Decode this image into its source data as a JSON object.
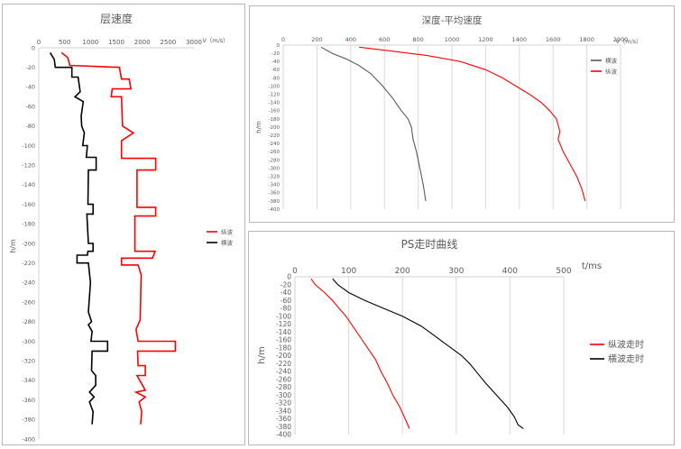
{
  "chart_data": [
    {
      "type": "line",
      "title": "层速度",
      "xlabel": "V（m/s）",
      "ylabel": "h/m",
      "xlim": [
        0,
        3000
      ],
      "ylim": [
        -400,
        0
      ],
      "xticks": [
        0,
        500,
        1000,
        1500,
        2000,
        2500,
        3000
      ],
      "yticks": [
        0,
        -20,
        -40,
        -60,
        -80,
        -100,
        -120,
        -140,
        -160,
        -180,
        -200,
        -220,
        -240,
        -260,
        -280,
        -300,
        -320,
        -340,
        -360,
        -380,
        -400
      ],
      "legend_position": "right",
      "grid": "none",
      "series": [
        {
          "name": "纵波",
          "color": "#ff0000",
          "step": true,
          "points": [
            [
              440,
              -5
            ],
            [
              560,
              -10
            ],
            [
              600,
              -18
            ],
            [
              1560,
              -20
            ],
            [
              1600,
              -32
            ],
            [
              1750,
              -32
            ],
            [
              1780,
              -42
            ],
            [
              1420,
              -42
            ],
            [
              1400,
              -50
            ],
            [
              1600,
              -50
            ],
            [
              1620,
              -80
            ],
            [
              1830,
              -87
            ],
            [
              1600,
              -95
            ],
            [
              1600,
              -113
            ],
            [
              2260,
              -113
            ],
            [
              2260,
              -125
            ],
            [
              1900,
              -125
            ],
            [
              1900,
              -163
            ],
            [
              2260,
              -163
            ],
            [
              2260,
              -172
            ],
            [
              1860,
              -172
            ],
            [
              1860,
              -208
            ],
            [
              2250,
              -208
            ],
            [
              2200,
              -215
            ],
            [
              1600,
              -215
            ],
            [
              1600,
              -222
            ],
            [
              1920,
              -222
            ],
            [
              1980,
              -232
            ],
            [
              1960,
              -278
            ],
            [
              1880,
              -288
            ],
            [
              1920,
              -300
            ],
            [
              2640,
              -300
            ],
            [
              2640,
              -310
            ],
            [
              1910,
              -310
            ],
            [
              1920,
              -325
            ],
            [
              2060,
              -325
            ],
            [
              2060,
              -335
            ],
            [
              1900,
              -335
            ],
            [
              2060,
              -350
            ],
            [
              1880,
              -352
            ],
            [
              2060,
              -357
            ],
            [
              1940,
              -362
            ],
            [
              1990,
              -372
            ],
            [
              1970,
              -385
            ]
          ]
        },
        {
          "name": "横波",
          "color": "#000000",
          "step": true,
          "points": [
            [
              220,
              -5
            ],
            [
              300,
              -12
            ],
            [
              320,
              -20
            ],
            [
              640,
              -20
            ],
            [
              640,
              -30
            ],
            [
              760,
              -30
            ],
            [
              800,
              -45
            ],
            [
              700,
              -50
            ],
            [
              860,
              -55
            ],
            [
              820,
              -70
            ],
            [
              830,
              -80
            ],
            [
              880,
              -87
            ],
            [
              850,
              -100
            ],
            [
              940,
              -100
            ],
            [
              920,
              -112
            ],
            [
              1110,
              -112
            ],
            [
              1110,
              -125
            ],
            [
              960,
              -125
            ],
            [
              950,
              -160
            ],
            [
              1050,
              -160
            ],
            [
              1050,
              -170
            ],
            [
              930,
              -170
            ],
            [
              960,
              -200
            ],
            [
              1050,
              -200
            ],
            [
              1050,
              -208
            ],
            [
              950,
              -208
            ],
            [
              940,
              -212
            ],
            [
              740,
              -212
            ],
            [
              740,
              -220
            ],
            [
              960,
              -220
            ],
            [
              1000,
              -240
            ],
            [
              960,
              -270
            ],
            [
              1020,
              -280
            ],
            [
              960,
              -283
            ],
            [
              1030,
              -290
            ],
            [
              1010,
              -300
            ],
            [
              1330,
              -300
            ],
            [
              1330,
              -310
            ],
            [
              1030,
              -310
            ],
            [
              1020,
              -330
            ],
            [
              1100,
              -335
            ],
            [
              1100,
              -345
            ],
            [
              980,
              -352
            ],
            [
              1070,
              -357
            ],
            [
              980,
              -362
            ],
            [
              1050,
              -372
            ],
            [
              1030,
              -385
            ]
          ]
        }
      ]
    },
    {
      "type": "line",
      "title": "深度-平均速度",
      "xlabel": "V（m/s）",
      "ylabel": "h/m",
      "xlim": [
        0,
        2000
      ],
      "ylim": [
        -400,
        0
      ],
      "xticks": [
        0,
        200,
        400,
        600,
        800,
        1000,
        1200,
        1400,
        1600,
        1800,
        2000
      ],
      "yticks": [
        0,
        -20,
        -40,
        -60,
        -80,
        -100,
        -120,
        -140,
        -160,
        -180,
        -200,
        -220,
        -240,
        -260,
        -280,
        -300,
        -320,
        -340,
        -360,
        -380,
        -400
      ],
      "legend_position": "right",
      "grid": "vertical",
      "series": [
        {
          "name": "横波",
          "color": "#595959",
          "points": [
            [
              225,
              -5
            ],
            [
              290,
              -20
            ],
            [
              380,
              -35
            ],
            [
              450,
              -50
            ],
            [
              520,
              -70
            ],
            [
              590,
              -100
            ],
            [
              650,
              -130
            ],
            [
              700,
              -160
            ],
            [
              740,
              -180
            ],
            [
              760,
              -200
            ],
            [
              770,
              -230
            ],
            [
              790,
              -260
            ],
            [
              810,
              -300
            ],
            [
              830,
              -340
            ],
            [
              845,
              -380
            ]
          ]
        },
        {
          "name": "纵波",
          "color": "#ff0000",
          "points": [
            [
              450,
              -5
            ],
            [
              650,
              -15
            ],
            [
              850,
              -25
            ],
            [
              1050,
              -40
            ],
            [
              1200,
              -60
            ],
            [
              1300,
              -80
            ],
            [
              1380,
              -100
            ],
            [
              1460,
              -120
            ],
            [
              1530,
              -140
            ],
            [
              1580,
              -160
            ],
            [
              1620,
              -180
            ],
            [
              1640,
              -210
            ],
            [
              1630,
              -230
            ],
            [
              1660,
              -260
            ],
            [
              1700,
              -290
            ],
            [
              1740,
              -320
            ],
            [
              1770,
              -350
            ],
            [
              1790,
              -380
            ]
          ]
        }
      ]
    },
    {
      "type": "line",
      "title": "PS走时曲线",
      "xlabel": "t/ms",
      "ylabel": "h/m",
      "xlim": [
        0,
        500
      ],
      "ylim": [
        -400,
        0
      ],
      "xticks": [
        0,
        100,
        200,
        300,
        400,
        500
      ],
      "yticks": [
        0,
        -20,
        -40,
        -60,
        -80,
        -100,
        -120,
        -140,
        -160,
        -180,
        -200,
        -220,
        -240,
        -260,
        -280,
        -300,
        -320,
        -340,
        -360,
        -380,
        -400
      ],
      "legend_position": "right",
      "grid": "vertical",
      "series": [
        {
          "name": "纵波走时",
          "color": "#ff0000",
          "points": [
            [
              30,
              -5
            ],
            [
              38,
              -20
            ],
            [
              55,
              -40
            ],
            [
              70,
              -60
            ],
            [
              82,
              -80
            ],
            [
              95,
              -100
            ],
            [
              110,
              -130
            ],
            [
              125,
              -160
            ],
            [
              140,
              -190
            ],
            [
              150,
              -210
            ],
            [
              160,
              -240
            ],
            [
              172,
              -270
            ],
            [
              182,
              -300
            ],
            [
              195,
              -330
            ],
            [
              205,
              -360
            ],
            [
              213,
              -385
            ]
          ]
        },
        {
          "name": "横波走时",
          "color": "#000000",
          "points": [
            [
              70,
              -5
            ],
            [
              80,
              -20
            ],
            [
              100,
              -40
            ],
            [
              130,
              -60
            ],
            [
              165,
              -80
            ],
            [
              200,
              -100
            ],
            [
              235,
              -125
            ],
            [
              260,
              -150
            ],
            [
              285,
              -175
            ],
            [
              310,
              -200
            ],
            [
              325,
              -220
            ],
            [
              340,
              -245
            ],
            [
              355,
              -270
            ],
            [
              375,
              -300
            ],
            [
              395,
              -330
            ],
            [
              408,
              -355
            ],
            [
              415,
              -375
            ],
            [
              425,
              -385
            ]
          ]
        }
      ]
    }
  ]
}
